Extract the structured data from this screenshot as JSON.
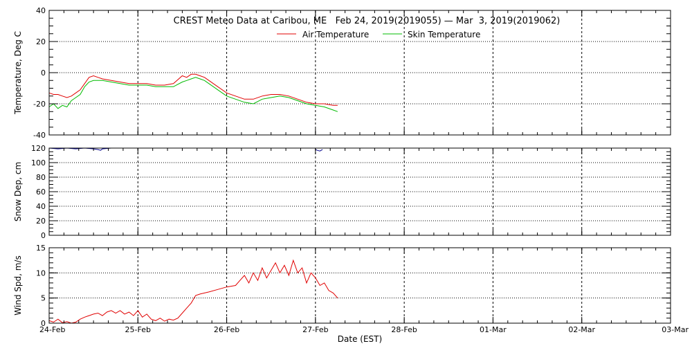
{
  "title": "CREST Meteo Data at Caribou, ME   Feb 24, 2019(2019055) — Mar  3, 2019(2019062)",
  "xlabel": "Date (EST)",
  "colors": {
    "air": "#e00000",
    "skin": "#00bb00",
    "snow": "#00008b",
    "wind": "#e00000",
    "grid": "#000000"
  },
  "chart_data": [
    {
      "type": "line",
      "panel": "temperature",
      "ylabel": "Temperature, Deg C",
      "ylim": [
        -40,
        40
      ],
      "yticks": [
        -40,
        -20,
        0,
        20,
        40
      ],
      "xlim": [
        0,
        7
      ],
      "xtick_labels": [
        "24-Feb",
        "25-Feb",
        "26-Feb",
        "27-Feb",
        "28-Feb",
        "01-Mar",
        "02-Mar",
        "03-Mar"
      ],
      "grid": true,
      "legend_position": "top-center",
      "series": [
        {
          "name": "Air Temperature",
          "color_key": "air",
          "x": [
            0.0,
            0.05,
            0.1,
            0.15,
            0.2,
            0.25,
            0.3,
            0.35,
            0.4,
            0.45,
            0.5,
            0.55,
            0.6,
            0.7,
            0.8,
            0.9,
            1.0,
            1.1,
            1.2,
            1.3,
            1.4,
            1.5,
            1.55,
            1.6,
            1.65,
            1.7,
            1.75,
            1.8,
            1.9,
            2.0,
            2.1,
            2.2,
            2.3,
            2.4,
            2.5,
            2.6,
            2.7,
            2.8,
            2.9,
            3.0,
            3.1,
            3.2,
            3.25
          ],
          "y": [
            -13,
            -14,
            -14,
            -15,
            -16,
            -15,
            -13,
            -11,
            -7,
            -3,
            -2,
            -3,
            -4,
            -5,
            -6,
            -7,
            -7,
            -7,
            -8,
            -8,
            -7,
            -2,
            -3,
            -1,
            -1,
            -2,
            -3,
            -5,
            -9,
            -13,
            -15,
            -17,
            -17,
            -15,
            -14,
            -14,
            -15,
            -17,
            -19,
            -20,
            -20,
            -21,
            -21
          ]
        },
        {
          "name": "Skin Temperature",
          "color_key": "skin",
          "x": [
            0.0,
            0.05,
            0.1,
            0.15,
            0.2,
            0.25,
            0.3,
            0.35,
            0.4,
            0.45,
            0.5,
            0.55,
            0.6,
            0.7,
            0.8,
            0.9,
            1.0,
            1.1,
            1.2,
            1.3,
            1.4,
            1.5,
            1.55,
            1.6,
            1.65,
            1.7,
            1.75,
            1.8,
            1.9,
            2.0,
            2.1,
            2.2,
            2.3,
            2.4,
            2.5,
            2.6,
            2.7,
            2.8,
            2.9,
            3.0,
            3.1,
            3.2,
            3.25
          ],
          "y": [
            -22,
            -20,
            -23,
            -21,
            -22,
            -18,
            -16,
            -14,
            -9,
            -6,
            -5,
            -5,
            -5,
            -6,
            -7,
            -8,
            -8,
            -8,
            -9,
            -9,
            -9,
            -6,
            -5,
            -4,
            -3,
            -4,
            -5,
            -7,
            -11,
            -15,
            -17,
            -19,
            -20,
            -17,
            -16,
            -15,
            -16,
            -18,
            -20,
            -21,
            -22,
            -24,
            -25
          ]
        }
      ]
    },
    {
      "type": "line",
      "panel": "snow",
      "ylabel": "Snow Dep, cm",
      "ylim": [
        0,
        120
      ],
      "yticks": [
        0,
        20,
        40,
        60,
        80,
        100,
        120
      ],
      "xlim": [
        0,
        7
      ],
      "grid": true,
      "series": [
        {
          "color_key": "snow",
          "x": [
            0.0,
            0.1,
            0.2,
            0.3,
            0.4,
            0.5,
            0.55,
            0.58,
            0.6,
            0.7
          ],
          "y": [
            120,
            119,
            120,
            119,
            120,
            119,
            118,
            117,
            119,
            120
          ]
        },
        {
          "color_key": "snow",
          "x": [
            3.0,
            3.02,
            3.05,
            3.08
          ],
          "y": [
            118,
            117,
            116,
            118
          ]
        }
      ]
    },
    {
      "type": "line",
      "panel": "wind",
      "ylabel": "Wind Spd, m/s",
      "ylim": [
        0,
        15
      ],
      "yticks": [
        0,
        5,
        10,
        15
      ],
      "xlim": [
        0,
        7
      ],
      "grid": true,
      "series": [
        {
          "color_key": "wind",
          "x": [
            0.0,
            0.05,
            0.1,
            0.15,
            0.2,
            0.25,
            0.3,
            0.35,
            0.4,
            0.45,
            0.5,
            0.55,
            0.6,
            0.65,
            0.7,
            0.75,
            0.8,
            0.85,
            0.9,
            0.95,
            1.0,
            1.05,
            1.1,
            1.15,
            1.2,
            1.25,
            1.3,
            1.35,
            1.4,
            1.45,
            1.5,
            1.55,
            1.6,
            1.65,
            1.7,
            1.8,
            1.9,
            2.0,
            2.1,
            2.15,
            2.2,
            2.25,
            2.3,
            2.35,
            2.4,
            2.45,
            2.5,
            2.55,
            2.6,
            2.65,
            2.7,
            2.75,
            2.8,
            2.85,
            2.9,
            2.95,
            3.0,
            3.05,
            3.1,
            3.15,
            3.2,
            3.25
          ],
          "y": [
            0.5,
            0.2,
            0.8,
            0.1,
            0.3,
            0.0,
            0.2,
            0.8,
            1.2,
            1.5,
            1.8,
            2.0,
            1.5,
            2.2,
            2.5,
            2.0,
            2.5,
            1.8,
            2.2,
            1.5,
            2.5,
            1.2,
            1.8,
            0.8,
            0.5,
            1.0,
            0.4,
            0.8,
            0.6,
            1.0,
            2.0,
            3.0,
            4.0,
            5.5,
            5.8,
            6.2,
            6.7,
            7.2,
            7.5,
            8.5,
            9.5,
            8.0,
            10.0,
            8.5,
            11.0,
            9.0,
            10.5,
            12.0,
            10.0,
            11.5,
            9.5,
            12.5,
            10.0,
            11.0,
            8.0,
            10.0,
            9.0,
            7.5,
            8.0,
            6.5,
            6.0,
            5.0
          ]
        }
      ]
    }
  ]
}
